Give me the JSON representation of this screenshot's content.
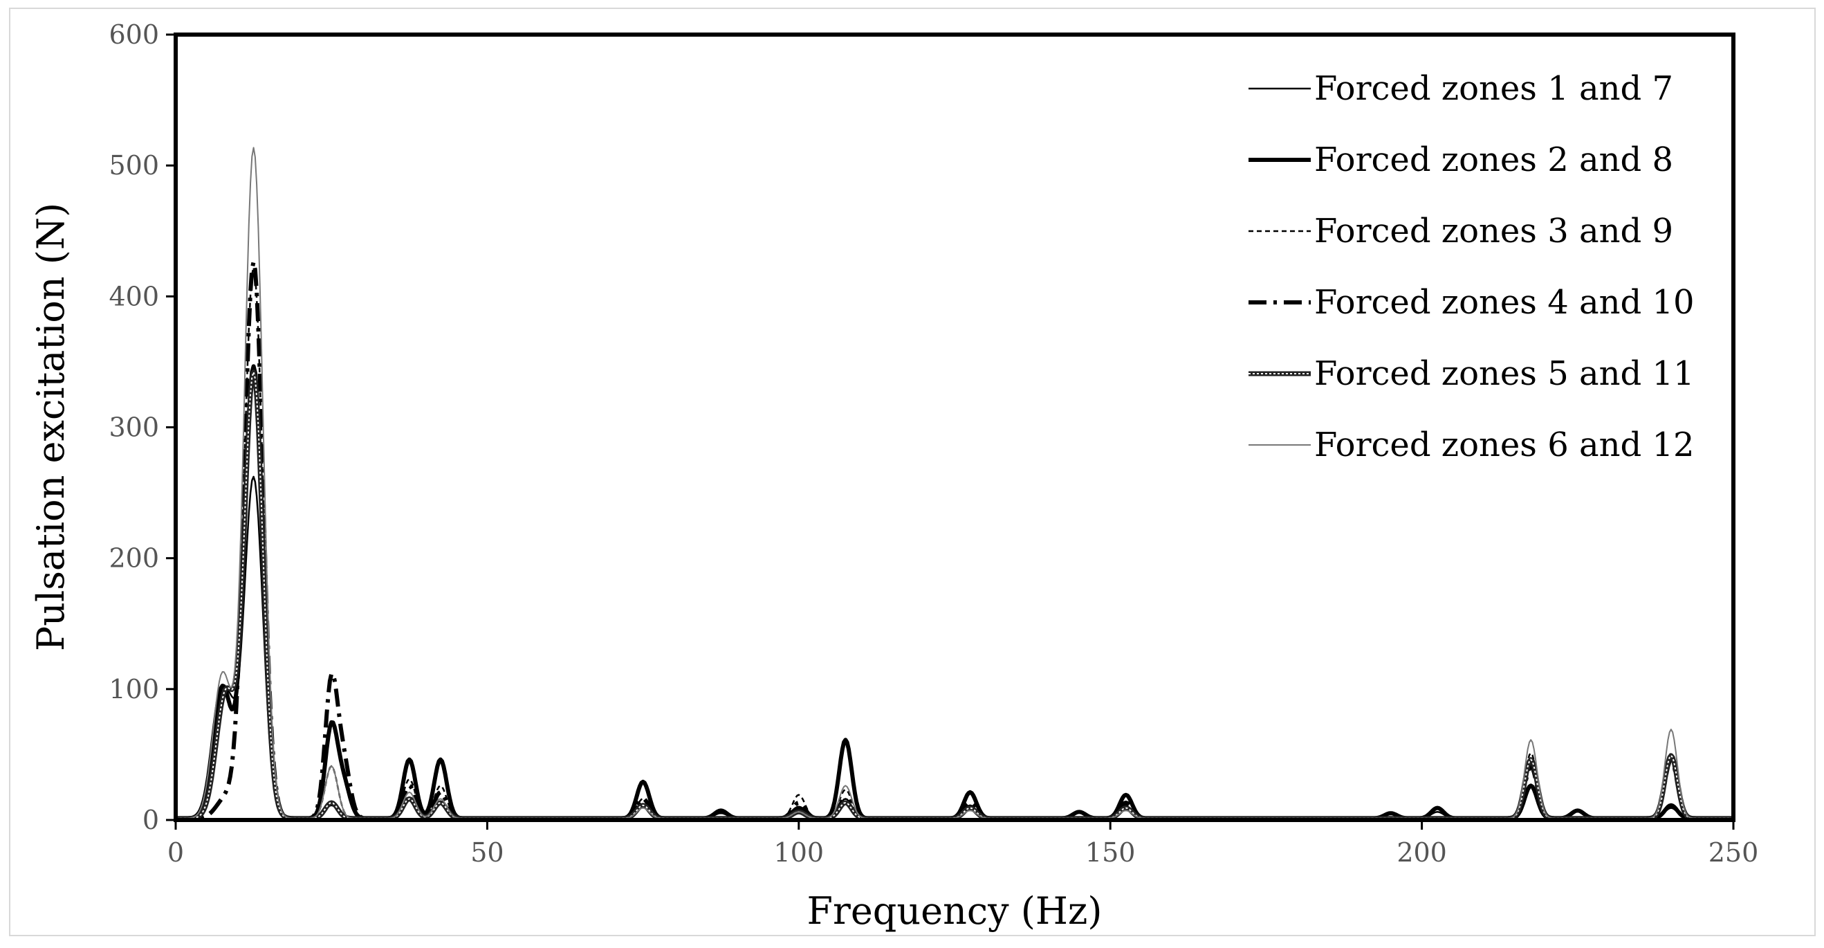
{
  "chart_data": {
    "type": "line",
    "xlabel": "Frequency (Hz)",
    "ylabel": "Pulsation excitation (N)",
    "xlim": [
      0,
      250
    ],
    "ylim": [
      0,
      600
    ],
    "x_ticks": [
      0,
      50,
      100,
      150,
      200,
      250
    ],
    "y_ticks": [
      0,
      100,
      200,
      300,
      400,
      500,
      600
    ],
    "x_tick_labels": [
      "0",
      "50",
      "100",
      "150",
      "200",
      "250"
    ],
    "y_tick_labels": [
      "0",
      "100",
      "200",
      "300",
      "400",
      "500",
      "600"
    ],
    "grid": false,
    "legend_position": "top-right",
    "series": [
      {
        "name": "Forced zones 1 and 7",
        "color": "#000000",
        "dash": "solid",
        "peaks": [
          {
            "x": 8,
            "y": 95
          },
          {
            "x": 12.5,
            "y": 260
          },
          {
            "x": 25,
            "y": 10
          },
          {
            "x": 37.5,
            "y": 15
          },
          {
            "x": 42.5,
            "y": 12
          },
          {
            "x": 75,
            "y": 10
          },
          {
            "x": 87.5,
            "y": 4
          },
          {
            "x": 100,
            "y": 6
          },
          {
            "x": 107.5,
            "y": 15
          },
          {
            "x": 127.5,
            "y": 8
          },
          {
            "x": 152.5,
            "y": 8
          },
          {
            "x": 202.5,
            "y": 5
          },
          {
            "x": 217.5,
            "y": 25
          },
          {
            "x": 240,
            "y": 8
          }
        ]
      },
      {
        "name": "Forced zones 2 and 8",
        "color": "#000000",
        "dash": "solid",
        "peaks": [
          {
            "x": 7.5,
            "y": 100
          },
          {
            "x": 12.5,
            "y": 345
          },
          {
            "x": 25,
            "y": 70
          },
          {
            "x": 27,
            "y": 25
          },
          {
            "x": 37.5,
            "y": 45
          },
          {
            "x": 42.5,
            "y": 45
          },
          {
            "x": 75,
            "y": 28
          },
          {
            "x": 87.5,
            "y": 6
          },
          {
            "x": 100,
            "y": 8
          },
          {
            "x": 107.5,
            "y": 60
          },
          {
            "x": 127.5,
            "y": 20
          },
          {
            "x": 145,
            "y": 5
          },
          {
            "x": 152.5,
            "y": 18
          },
          {
            "x": 195,
            "y": 4
          },
          {
            "x": 202.5,
            "y": 8
          },
          {
            "x": 217.5,
            "y": 25
          },
          {
            "x": 225,
            "y": 6
          },
          {
            "x": 240,
            "y": 10
          }
        ]
      },
      {
        "name": "Forced zones 3 and 9",
        "color": "#000000",
        "dash": "short",
        "peaks": [
          {
            "x": 8,
            "y": 90
          },
          {
            "x": 12.5,
            "y": 420
          },
          {
            "x": 25,
            "y": 40
          },
          {
            "x": 37.5,
            "y": 30
          },
          {
            "x": 42.5,
            "y": 25
          },
          {
            "x": 75,
            "y": 15
          },
          {
            "x": 87.5,
            "y": 5
          },
          {
            "x": 100,
            "y": 18
          },
          {
            "x": 107.5,
            "y": 22
          },
          {
            "x": 127.5,
            "y": 10
          },
          {
            "x": 152.5,
            "y": 10
          },
          {
            "x": 217.5,
            "y": 50
          },
          {
            "x": 240,
            "y": 50
          }
        ]
      },
      {
        "name": "Forced zones 4 and 10",
        "color": "#000000",
        "dash": "dashdot",
        "peaks": [
          {
            "x": 8,
            "y": 15
          },
          {
            "x": 12.5,
            "y": 425
          },
          {
            "x": 25,
            "y": 105
          },
          {
            "x": 27,
            "y": 40
          },
          {
            "x": 37.5,
            "y": 25
          },
          {
            "x": 42.5,
            "y": 20
          },
          {
            "x": 75,
            "y": 15
          },
          {
            "x": 100,
            "y": 12
          },
          {
            "x": 107.5,
            "y": 15
          },
          {
            "x": 127.5,
            "y": 12
          },
          {
            "x": 152.5,
            "y": 12
          },
          {
            "x": 217.5,
            "y": 40
          },
          {
            "x": 240,
            "y": 45
          }
        ]
      },
      {
        "name": "Forced zones 5 and 11",
        "color": "#222222",
        "dash": "double",
        "peaks": [
          {
            "x": 8,
            "y": 95
          },
          {
            "x": 12.5,
            "y": 340
          },
          {
            "x": 25,
            "y": 12
          },
          {
            "x": 37.5,
            "y": 15
          },
          {
            "x": 42.5,
            "y": 12
          },
          {
            "x": 75,
            "y": 10
          },
          {
            "x": 100,
            "y": 5
          },
          {
            "x": 107.5,
            "y": 12
          },
          {
            "x": 127.5,
            "y": 8
          },
          {
            "x": 152.5,
            "y": 8
          },
          {
            "x": 217.5,
            "y": 45
          },
          {
            "x": 240,
            "y": 48
          }
        ]
      },
      {
        "name": "Forced zones 6 and 12",
        "color": "#777777",
        "dash": "solid",
        "peaks": [
          {
            "x": 7.5,
            "y": 110
          },
          {
            "x": 12.5,
            "y": 512
          },
          {
            "x": 25,
            "y": 40
          },
          {
            "x": 37.5,
            "y": 20
          },
          {
            "x": 42.5,
            "y": 15
          },
          {
            "x": 75,
            "y": 8
          },
          {
            "x": 100,
            "y": 5
          },
          {
            "x": 107.5,
            "y": 25
          },
          {
            "x": 127.5,
            "y": 6
          },
          {
            "x": 152.5,
            "y": 6
          },
          {
            "x": 217.5,
            "y": 60
          },
          {
            "x": 240,
            "y": 68
          }
        ]
      }
    ]
  }
}
